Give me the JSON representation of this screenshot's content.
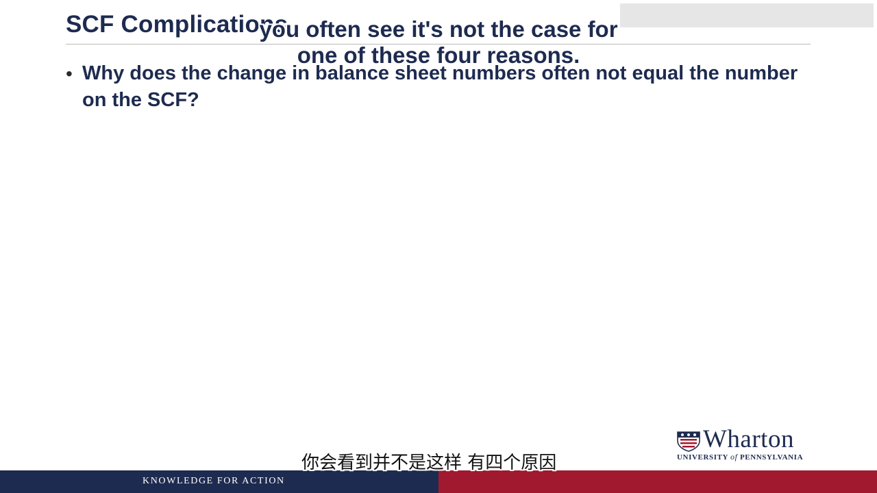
{
  "slide": {
    "title": "SCF Complications",
    "bullet_symbol": "•",
    "bullets": [
      "Why does the change in balance sheet numbers often not equal the number on the SCF?"
    ]
  },
  "captions": {
    "english": [
      "you often see it's not the case for",
      "one of these four reasons."
    ],
    "chinese": "你会看到并不是这样 有四个原因"
  },
  "logo": {
    "name": "Wharton",
    "subtitle_prefix": "UNIVERSITY",
    "subtitle_of": "of",
    "subtitle_suffix": "PENNSYLVANIA",
    "icon": "university-shield-icon"
  },
  "footer": {
    "tagline": "KNOWLEDGE FOR ACTION"
  },
  "colors": {
    "navy": "#1e2b50",
    "crimson": "#a0192f",
    "overlay_grey": "#e6e6e6"
  }
}
